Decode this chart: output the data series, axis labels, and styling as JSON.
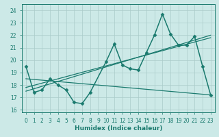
{
  "title": "",
  "xlabel": "Humidex (Indice chaleur)",
  "xlim": [
    -0.5,
    23.5
  ],
  "ylim": [
    15.8,
    24.5
  ],
  "yticks": [
    16,
    17,
    18,
    19,
    20,
    21,
    22,
    23,
    24
  ],
  "xticks": [
    0,
    1,
    2,
    3,
    4,
    5,
    6,
    7,
    8,
    9,
    10,
    11,
    12,
    13,
    14,
    15,
    16,
    17,
    18,
    19,
    20,
    21,
    22,
    23
  ],
  "bg_color": "#cce9e7",
  "grid_color": "#aaccca",
  "line_color": "#1a7a6e",
  "series": [
    {
      "x": [
        0,
        1,
        2,
        3,
        4,
        5,
        6,
        7,
        8,
        10,
        11,
        12,
        13,
        14,
        15,
        16,
        17,
        18,
        19
      ],
      "y": [
        19.5,
        17.4,
        17.6,
        18.5,
        18.0,
        17.6,
        16.6,
        16.5,
        17.4,
        19.9,
        21.3,
        19.6,
        19.3,
        19.2,
        20.6,
        22.0,
        23.7,
        22.1,
        21.2
      ],
      "marker": "D",
      "markersize": 2.5,
      "linewidth": 1.1
    },
    {
      "x": [
        19,
        20,
        21,
        22,
        23
      ],
      "y": [
        21.2,
        21.2,
        21.9,
        19.5,
        17.2
      ],
      "marker": "D",
      "markersize": 2.5,
      "linewidth": 1.1
    },
    {
      "x": [
        0,
        23
      ],
      "y": [
        17.5,
        22.0
      ],
      "marker": null,
      "markersize": 0,
      "linewidth": 0.9
    },
    {
      "x": [
        0,
        23
      ],
      "y": [
        17.8,
        21.8
      ],
      "marker": null,
      "markersize": 0,
      "linewidth": 0.9
    },
    {
      "x": [
        0,
        23
      ],
      "y": [
        18.5,
        17.2
      ],
      "marker": null,
      "markersize": 0,
      "linewidth": 0.9
    }
  ]
}
